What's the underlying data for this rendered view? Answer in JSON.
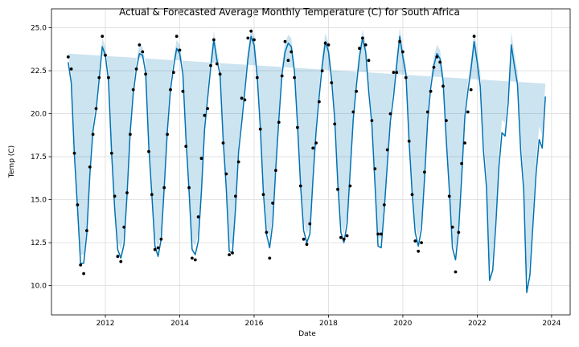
{
  "chart_data": {
    "type": "line",
    "title": "Actual & Forecasted Average Monthly Temperature (C) for South Africa",
    "xlabel": "Date",
    "ylabel": "Temp (C)",
    "xlim": [
      2010.55,
      2024.5
    ],
    "ylim": [
      8.3,
      26.1
    ],
    "x_ticks": [
      2012,
      2014,
      2016,
      2018,
      2020,
      2022,
      2024
    ],
    "x_tick_labels": [
      "2012",
      "2014",
      "2016",
      "2018",
      "2020",
      "2022",
      "2024"
    ],
    "y_ticks": [
      10.0,
      12.5,
      15.0,
      17.5,
      20.0,
      22.5,
      25.0
    ],
    "y_tick_labels": [
      "10.0",
      "12.5",
      "15.0",
      "17.5",
      "20.0",
      "22.5",
      "25.0"
    ],
    "grid": true,
    "colors": {
      "forecast": "#0072b2",
      "interval": "#0072b2",
      "actual": "#000000"
    },
    "forecast_x": [
      2011.0,
      2011.083,
      2011.167,
      2011.25,
      2011.333,
      2011.417,
      2011.5,
      2011.583,
      2011.667,
      2011.75,
      2011.833,
      2011.917,
      2012.0,
      2012.083,
      2012.167,
      2012.25,
      2012.333,
      2012.417,
      2012.5,
      2012.583,
      2012.667,
      2012.75,
      2012.833,
      2012.917,
      2013.0,
      2013.083,
      2013.167,
      2013.25,
      2013.333,
      2013.417,
      2013.5,
      2013.583,
      2013.667,
      2013.75,
      2013.833,
      2013.917,
      2014.0,
      2014.083,
      2014.167,
      2014.25,
      2014.333,
      2014.417,
      2014.5,
      2014.583,
      2014.667,
      2014.75,
      2014.833,
      2014.917,
      2015.0,
      2015.083,
      2015.167,
      2015.25,
      2015.333,
      2015.417,
      2015.5,
      2015.583,
      2015.667,
      2015.75,
      2015.833,
      2015.917,
      2016.0,
      2016.083,
      2016.167,
      2016.25,
      2016.333,
      2016.417,
      2016.5,
      2016.583,
      2016.667,
      2016.75,
      2016.833,
      2016.917,
      2017.0,
      2017.083,
      2017.167,
      2017.25,
      2017.333,
      2017.417,
      2017.5,
      2017.583,
      2017.667,
      2017.75,
      2017.833,
      2017.917,
      2018.0,
      2018.083,
      2018.167,
      2018.25,
      2018.333,
      2018.417,
      2018.5,
      2018.583,
      2018.667,
      2018.75,
      2018.833,
      2018.917,
      2019.0,
      2019.083,
      2019.167,
      2019.25,
      2019.333,
      2019.417,
      2019.5,
      2019.583,
      2019.667,
      2019.75,
      2019.833,
      2019.917,
      2020.0,
      2020.083,
      2020.167,
      2020.25,
      2020.333,
      2020.417,
      2020.5,
      2020.583,
      2020.667,
      2020.75,
      2020.833,
      2020.917,
      2021.0,
      2021.083,
      2021.167,
      2021.25,
      2021.333,
      2021.417,
      2021.5,
      2021.583,
      2021.667,
      2021.75,
      2021.833,
      2021.917,
      2022.0,
      2022.083,
      2022.167,
      2022.25,
      2022.333,
      2022.417,
      2022.5,
      2022.583,
      2022.667,
      2022.75,
      2022.833,
      2022.917,
      2023.0,
      2023.083,
      2023.167,
      2023.25,
      2023.333,
      2023.417,
      2023.5,
      2023.583,
      2023.667,
      2023.75,
      2023.833,
      2023.917
    ],
    "forecast_y": [
      23.0,
      21.8,
      17.6,
      14.5,
      11.3,
      11.3,
      13.0,
      16.5,
      19.0,
      20.2,
      22.0,
      23.9,
      23.4,
      21.9,
      17.7,
      14.5,
      12.1,
      11.6,
      12.4,
      15.3,
      18.9,
      21.2,
      22.6,
      23.5,
      23.4,
      22.4,
      18.1,
      15.3,
      12.3,
      11.7,
      12.7,
      15.7,
      19.0,
      21.4,
      22.7,
      23.8,
      23.5,
      22.3,
      18.6,
      15.5,
      12.1,
      11.8,
      12.6,
      15.5,
      19.1,
      20.9,
      22.7,
      24.3,
      23.1,
      22.3,
      18.5,
      15.7,
      12.0,
      11.9,
      14.5,
      17.8,
      19.5,
      21.3,
      23.2,
      24.5,
      24.0,
      22.2,
      19.2,
      15.4,
      13.0,
      12.2,
      13.6,
      16.8,
      19.7,
      22.3,
      23.6,
      24.1,
      23.9,
      22.5,
      19.4,
      15.8,
      13.2,
      12.5,
      13.0,
      16.2,
      19.0,
      21.0,
      22.8,
      24.2,
      23.6,
      22.0,
      19.7,
      16.0,
      13.1,
      12.5,
      13.6,
      16.6,
      19.7,
      21.6,
      23.3,
      24.4,
      23.6,
      21.3,
      19.4,
      15.9,
      12.3,
      12.2,
      14.4,
      17.1,
      19.6,
      21.0,
      22.8,
      24.5,
      23.3,
      22.3,
      18.4,
      15.4,
      13.1,
      12.3,
      13.3,
      16.2,
      19.6,
      21.5,
      22.8,
      23.5,
      23.2,
      21.9,
      18.5,
      15.6,
      12.2,
      11.5,
      13.2,
      16.3,
      19.8,
      21.3,
      22.6,
      24.2,
      23.0,
      21.6,
      17.9,
      15.7,
      10.3,
      10.9,
      13.5,
      16.9,
      18.9,
      18.7,
      20.6,
      24.0,
      22.8,
      21.7,
      17.9,
      15.6,
      9.6,
      10.6,
      13.6,
      16.5,
      18.5,
      18.0,
      21.0
    ],
    "actual_x": [
      2011.0,
      2011.083,
      2011.167,
      2011.25,
      2011.333,
      2011.417,
      2011.5,
      2011.583,
      2011.667,
      2011.75,
      2011.833,
      2011.917,
      2012.0,
      2012.083,
      2012.167,
      2012.25,
      2012.333,
      2012.417,
      2012.5,
      2012.583,
      2012.667,
      2012.75,
      2012.833,
      2012.917,
      2013.0,
      2013.083,
      2013.167,
      2013.25,
      2013.333,
      2013.417,
      2013.5,
      2013.583,
      2013.667,
      2013.75,
      2013.833,
      2013.917,
      2014.0,
      2014.083,
      2014.167,
      2014.25,
      2014.333,
      2014.417,
      2014.5,
      2014.583,
      2014.667,
      2014.75,
      2014.833,
      2014.917,
      2015.0,
      2015.083,
      2015.167,
      2015.25,
      2015.333,
      2015.417,
      2015.5,
      2015.583,
      2015.667,
      2015.75,
      2015.833,
      2015.917,
      2016.0,
      2016.083,
      2016.167,
      2016.25,
      2016.333,
      2016.417,
      2016.5,
      2016.583,
      2016.667,
      2016.75,
      2016.833,
      2016.917,
      2017.0,
      2017.083,
      2017.167,
      2017.25,
      2017.333,
      2017.417,
      2017.5,
      2017.583,
      2017.667,
      2017.75,
      2017.833,
      2017.917,
      2018.0,
      2018.083,
      2018.167,
      2018.25,
      2018.333,
      2018.417,
      2018.5,
      2018.583,
      2018.667,
      2018.75,
      2018.833,
      2018.917,
      2019.0,
      2019.083,
      2019.167,
      2019.25,
      2019.333,
      2019.417,
      2019.5,
      2019.583,
      2019.667,
      2019.75,
      2019.833,
      2019.917,
      2020.0,
      2020.083,
      2020.167,
      2020.25,
      2020.333,
      2020.417,
      2020.5,
      2020.583,
      2020.667,
      2020.75,
      2020.833,
      2020.917,
      2021.0,
      2021.083,
      2021.167,
      2021.25,
      2021.333,
      2021.417,
      2021.5,
      2021.583,
      2021.667,
      2021.75,
      2021.833,
      2021.917
    ],
    "actual_y": [
      23.3,
      22.6,
      17.7,
      14.7,
      11.2,
      10.7,
      13.2,
      16.9,
      18.8,
      20.3,
      22.1,
      24.5,
      23.4,
      22.1,
      17.7,
      15.2,
      11.7,
      11.4,
      13.4,
      15.4,
      18.8,
      21.4,
      22.6,
      24.0,
      23.6,
      22.3,
      17.8,
      15.3,
      12.1,
      12.2,
      12.7,
      15.7,
      18.8,
      21.4,
      22.4,
      24.5,
      23.7,
      21.3,
      18.1,
      15.7,
      11.6,
      11.5,
      14.0,
      17.4,
      19.9,
      20.3,
      22.8,
      24.3,
      22.9,
      22.3,
      18.3,
      16.5,
      11.8,
      11.9,
      15.2,
      17.2,
      20.9,
      20.8,
      24.4,
      24.8,
      24.3,
      22.1,
      19.1,
      15.3,
      13.1,
      11.6,
      14.8,
      16.7,
      19.5,
      22.2,
      24.2,
      23.1,
      23.6,
      22.1,
      19.2,
      15.8,
      12.7,
      12.4,
      13.6,
      18.0,
      18.3,
      20.7,
      22.5,
      24.1,
      24.0,
      21.8,
      19.4,
      15.6,
      12.8,
      12.7,
      12.9,
      15.8,
      20.1,
      21.3,
      23.8,
      24.4,
      24.0,
      23.1,
      19.6,
      16.8,
      13.0,
      13.0,
      14.7,
      17.9,
      20.0,
      22.4,
      22.4,
      24.2,
      23.6,
      22.1,
      18.4,
      15.3,
      12.6,
      12.0,
      12.5,
      16.6,
      20.1,
      21.3,
      22.7,
      23.3,
      23.0,
      21.6,
      19.6,
      15.2,
      13.4,
      10.8,
      13.1,
      17.1,
      18.3,
      20.1,
      21.4,
      24.5
    ],
    "interval_half_width": 0.5,
    "interval_half_width_future": 0.75
  }
}
